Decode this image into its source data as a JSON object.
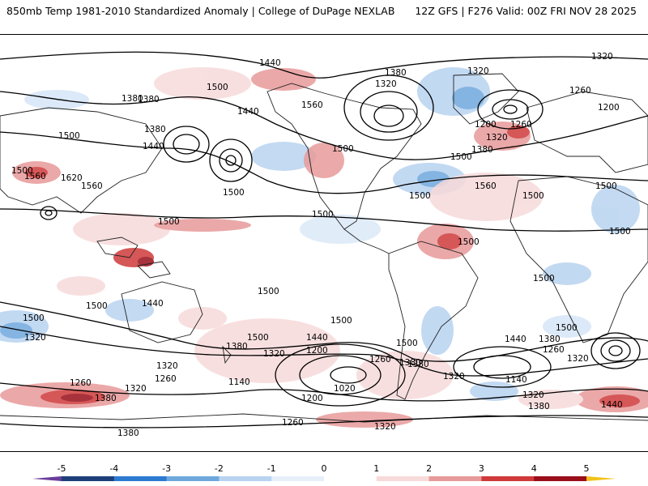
{
  "header": {
    "title": "850mb Temp 1981-2010 Standardized Anomaly | College of DuPage NEXLAB",
    "run_info": "12Z GFS | F276 Valid: 00Z FRI NOV 28 2025"
  },
  "colorbar": {
    "ticks": [
      "-5",
      "-4",
      "-3",
      "-2",
      "-1",
      "0",
      "1",
      "2",
      "3",
      "4",
      "5"
    ],
    "colors": [
      "#6a3d9a",
      "#1f3f7a",
      "#2c7bd1",
      "#6fa8dc",
      "#b8d3f0",
      "#e6f0fa",
      "#ffffff",
      "#f7dada",
      "#e89a9a",
      "#d03a3a",
      "#9a0f1a",
      "#f2c21b"
    ]
  },
  "map": {
    "contour_labels": [
      "1320",
      "1440",
      "1380",
      "1320",
      "1320",
      "1260",
      "1200",
      "1500",
      "1380",
      "1560",
      "1380",
      "1500",
      "1440",
      "1500",
      "1500",
      "1380",
      "1200",
      "1260",
      "1320",
      "1380",
      "1500",
      "1440",
      "1500",
      "1500",
      "1560",
      "1620",
      "1500",
      "1560",
      "1500",
      "1500",
      "1500",
      "1500",
      "1500",
      "1500",
      "1500",
      "1560",
      "1500",
      "1500",
      "1440",
      "1320",
      "1500",
      "1500",
      "1500",
      "1380",
      "1440",
      "1320",
      "1320",
      "1200",
      "1260",
      "1380",
      "1500",
      "1440",
      "1380",
      "1320",
      "1260",
      "1260",
      "1380",
      "1320",
      "1140",
      "1200",
      "1140",
      "1320",
      "1380",
      "1260",
      "1440",
      "1020",
      "1320",
      "1260",
      "1380",
      "1380",
      "1320"
    ]
  }
}
